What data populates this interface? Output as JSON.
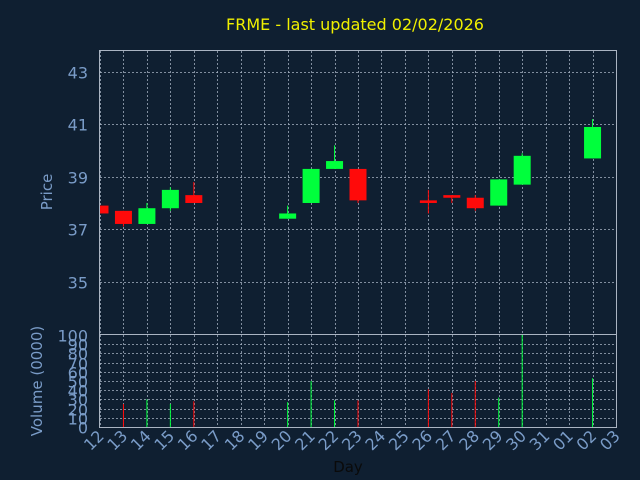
{
  "colors": {
    "background": "#0f1f31",
    "title": "#f0f000",
    "axis_text": "#7a9cc8",
    "grid": "#a8b4c4",
    "up": "#00ff3c",
    "down": "#ff0a0a",
    "frame": "#aab4c2"
  },
  "chart_data": {
    "type": "candlestick",
    "title": "FRME - last updated 02/02/2026",
    "xlabel": "Day",
    "x_ticks": [
      "12",
      "13",
      "14",
      "15",
      "16",
      "17",
      "18",
      "19",
      "20",
      "21",
      "22",
      "23",
      "24",
      "25",
      "26",
      "27",
      "28",
      "29",
      "30",
      "31",
      "01",
      "02",
      "03"
    ],
    "price_panel": {
      "ylabel": "Price",
      "ylim": [
        33,
        43.8
      ],
      "y_ticks": [
        35,
        37,
        39,
        41,
        43
      ],
      "candles": [
        {
          "day": "12",
          "open": 37.9,
          "close": 37.6,
          "high": 37.9,
          "low": 37.6
        },
        {
          "day": "13",
          "open": 37.7,
          "close": 37.2,
          "high": 37.7,
          "low": 37.1
        },
        {
          "day": "14",
          "open": 37.2,
          "close": 37.8,
          "high": 38.0,
          "low": 37.2
        },
        {
          "day": "15",
          "open": 37.8,
          "close": 38.5,
          "high": 38.6,
          "low": 37.7
        },
        {
          "day": "16",
          "open": 38.3,
          "close": 38.0,
          "high": 38.8,
          "low": 38.0
        },
        {
          "day": "20",
          "open": 37.4,
          "close": 37.6,
          "high": 37.9,
          "low": 37.4
        },
        {
          "day": "21",
          "open": 38.0,
          "close": 39.3,
          "high": 39.3,
          "low": 38.0
        },
        {
          "day": "22",
          "open": 39.3,
          "close": 39.6,
          "high": 40.2,
          "low": 39.3
        },
        {
          "day": "23",
          "open": 39.3,
          "close": 38.1,
          "high": 39.3,
          "low": 38.0
        },
        {
          "day": "26",
          "open": 38.1,
          "close": 38.0,
          "high": 38.5,
          "low": 37.6
        },
        {
          "day": "27",
          "open": 38.3,
          "close": 38.2,
          "high": 38.3,
          "low": 38.0
        },
        {
          "day": "28",
          "open": 38.2,
          "close": 37.8,
          "high": 38.3,
          "low": 37.7
        },
        {
          "day": "29",
          "open": 37.9,
          "close": 38.9,
          "high": 38.9,
          "low": 37.9
        },
        {
          "day": "30",
          "open": 38.7,
          "close": 39.8,
          "high": 39.9,
          "low": 38.7
        },
        {
          "day": "02",
          "open": 39.7,
          "close": 40.9,
          "high": 41.2,
          "low": 39.7
        }
      ]
    },
    "volume_panel": {
      "ylabel": "Volume (0000)",
      "ylim": [
        0,
        100
      ],
      "y_ticks": [
        0,
        10,
        20,
        30,
        40,
        50,
        60,
        70,
        80,
        90,
        100
      ],
      "bars": [
        {
          "day": "13",
          "value": 25,
          "direction": "down"
        },
        {
          "day": "14",
          "value": 30,
          "direction": "up"
        },
        {
          "day": "15",
          "value": 25,
          "direction": "up"
        },
        {
          "day": "16",
          "value": 28,
          "direction": "down"
        },
        {
          "day": "20",
          "value": 27,
          "direction": "up"
        },
        {
          "day": "21",
          "value": 50,
          "direction": "up"
        },
        {
          "day": "22",
          "value": 29,
          "direction": "up"
        },
        {
          "day": "23",
          "value": 29,
          "direction": "down"
        },
        {
          "day": "26",
          "value": 41,
          "direction": "down"
        },
        {
          "day": "27",
          "value": 37,
          "direction": "down"
        },
        {
          "day": "28",
          "value": 50,
          "direction": "down"
        },
        {
          "day": "29",
          "value": 32,
          "direction": "up"
        },
        {
          "day": "30",
          "value": 100,
          "direction": "up"
        },
        {
          "day": "02",
          "value": 53,
          "direction": "up"
        }
      ]
    }
  }
}
